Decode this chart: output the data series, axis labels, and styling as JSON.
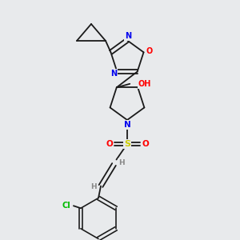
{
  "background_color": "#e8eaec",
  "bond_color": "#1a1a1a",
  "atom_colors": {
    "N": "#0000ee",
    "O": "#ff0000",
    "S": "#cccc00",
    "Cl": "#00bb00",
    "C": "#1a1a1a",
    "H": "#888888"
  },
  "figsize": [
    3.0,
    3.0
  ],
  "dpi": 100
}
